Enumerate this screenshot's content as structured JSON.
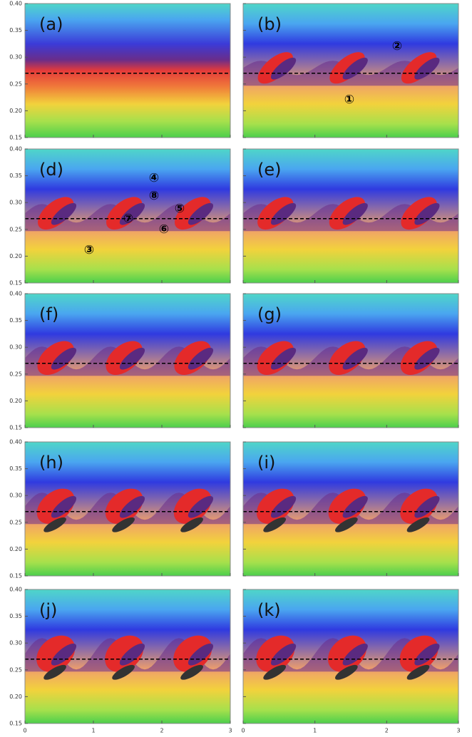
{
  "y_axis": {
    "lim": [
      0.15,
      0.4
    ],
    "ticks": [
      {
        "value": 0.4,
        "label": "0.40"
      },
      {
        "value": 0.35,
        "label": "0.35"
      },
      {
        "value": 0.3,
        "label": "0.30"
      },
      {
        "value": 0.25,
        "label": "0.25"
      },
      {
        "value": 0.2,
        "label": "0.20"
      },
      {
        "value": 0.15,
        "label": "0.15"
      }
    ]
  },
  "x_axis": {
    "lim": [
      0,
      3
    ],
    "ticks": [
      0,
      1,
      2,
      3
    ]
  },
  "reference_line": 0.27,
  "panels": [
    {
      "label": "(a)"
    },
    {
      "label": "(b)",
      "annotations": [
        "①",
        "②"
      ]
    },
    {
      "label": "(d)",
      "annotations": [
        "④",
        "⑧",
        "⑤",
        "⑦",
        "⑥",
        "③"
      ]
    },
    {
      "label": "(e)"
    },
    {
      "label": "(f)"
    },
    {
      "label": "(g)"
    },
    {
      "label": "(h)"
    },
    {
      "label": "(i)"
    },
    {
      "label": "(j)"
    },
    {
      "label": "(k)"
    }
  ]
}
